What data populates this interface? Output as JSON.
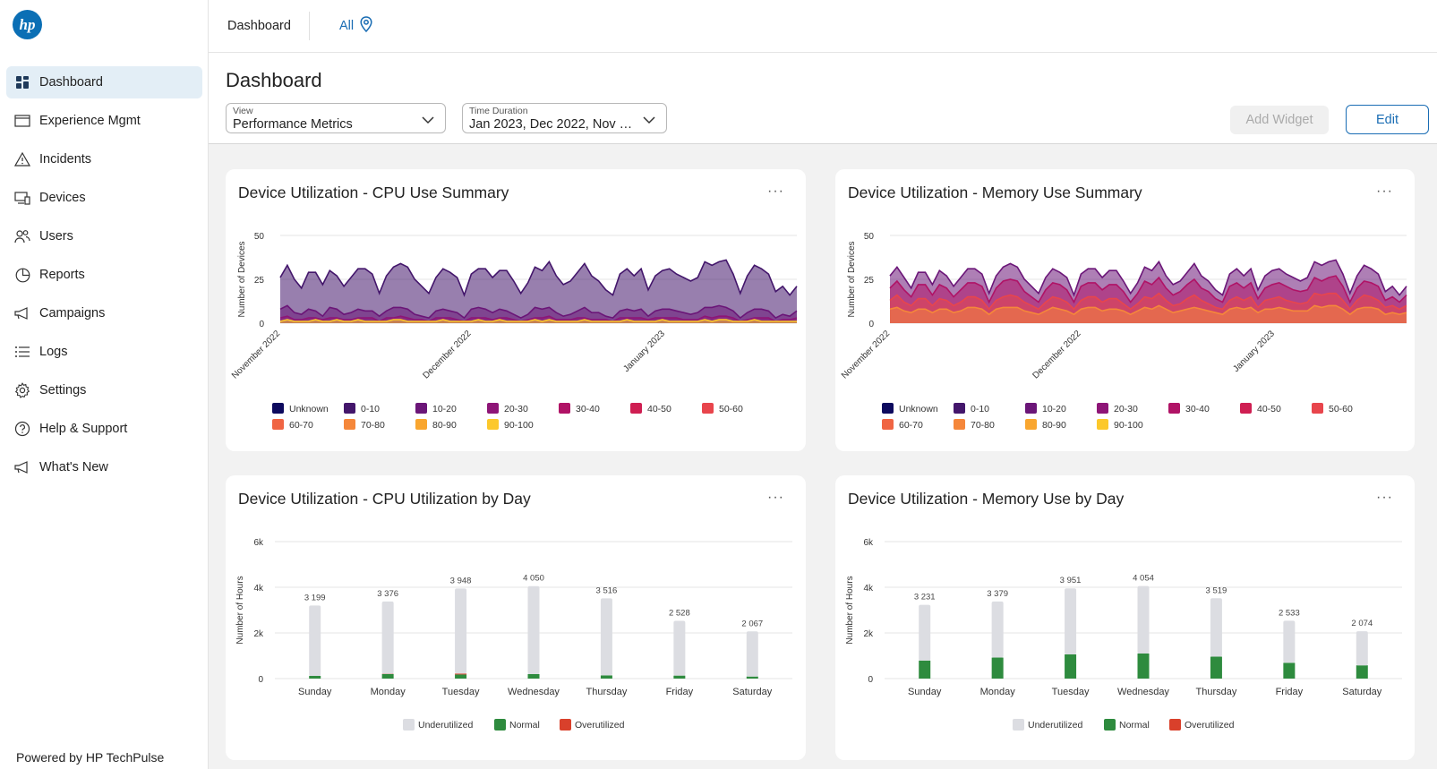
{
  "app": {
    "logo_text": "hp",
    "powered_by": "Powered by HP TechPulse"
  },
  "sidebar": {
    "items": [
      {
        "label": "Dashboard",
        "icon": "dashboard-icon",
        "active": true
      },
      {
        "label": "Experience Mgmt",
        "icon": "window-icon"
      },
      {
        "label": "Incidents",
        "icon": "warning-icon"
      },
      {
        "label": "Devices",
        "icon": "devices-icon"
      },
      {
        "label": "Users",
        "icon": "users-icon"
      },
      {
        "label": "Reports",
        "icon": "pie-chart-icon"
      },
      {
        "label": "Campaigns",
        "icon": "megaphone-icon"
      },
      {
        "label": "Logs",
        "icon": "list-icon"
      },
      {
        "label": "Settings",
        "icon": "gear-icon"
      },
      {
        "label": "Help & Support",
        "icon": "help-icon"
      },
      {
        "label": "What's New",
        "icon": "announcement-icon"
      }
    ]
  },
  "topbar": {
    "breadcrumb": "Dashboard",
    "location": "All"
  },
  "header": {
    "title": "Dashboard",
    "view": {
      "label": "View",
      "value": "Performance Metrics"
    },
    "time": {
      "label": "Time Duration",
      "value": "Jan 2023, Dec 2022, Nov 20..."
    },
    "add_widget": "Add Widget",
    "edit": "Edit"
  },
  "colors": {
    "accent": "#1a6db4",
    "underutilized": "#dcdde2",
    "normal": "#2e8b3e",
    "overutilized": "#d9402b"
  },
  "chart_data": [
    {
      "type": "area",
      "title": "Device Utilization - CPU Use Summary",
      "ylabel": "Number of Devices",
      "ylim": [
        0,
        50
      ],
      "yticks": [
        "50",
        "25",
        "0"
      ],
      "xticks": [
        "November 2022",
        "December 2022",
        "January 2023"
      ],
      "legend": [
        "Unknown",
        "0-10",
        "10-20",
        "20-30",
        "30-40",
        "40-50",
        "50-60",
        "60-70",
        "70-80",
        "80-90",
        "90-100"
      ],
      "legend_colors": [
        "#0d0a5e",
        "#43166b",
        "#6b1678",
        "#8e1577",
        "#b01366",
        "#cf1e52",
        "#e8454c",
        "#f06543",
        "#f5873a",
        "#f9a62f",
        "#fcc82b"
      ],
      "series": [
        {
          "name": "0-10",
          "values": [
            26,
            33,
            25,
            20,
            29,
            29,
            22,
            30,
            27,
            21,
            26,
            31,
            31,
            28,
            17,
            27,
            32,
            34,
            32,
            25,
            21,
            17,
            26,
            31,
            29,
            26,
            16,
            28,
            31,
            31,
            26,
            30,
            30,
            24,
            17,
            23,
            32,
            30,
            35,
            27,
            22,
            24,
            29,
            34,
            27,
            24,
            19,
            16,
            28,
            31,
            27,
            31,
            19,
            27,
            30,
            31,
            28,
            26,
            24,
            26,
            35,
            33,
            35,
            36,
            28,
            17,
            27,
            33,
            31,
            28,
            18,
            21,
            16,
            21
          ]
        },
        {
          "name": "10-20",
          "values": [
            8,
            10,
            6,
            5,
            8,
            7,
            4,
            9,
            8,
            5,
            6,
            8,
            7,
            7,
            4,
            7,
            9,
            9,
            8,
            5,
            4,
            3,
            7,
            8,
            7,
            6,
            3,
            8,
            9,
            8,
            6,
            8,
            7,
            5,
            3,
            5,
            9,
            8,
            9,
            6,
            4,
            5,
            7,
            9,
            6,
            6,
            4,
            3,
            7,
            8,
            7,
            8,
            4,
            7,
            8,
            8,
            7,
            6,
            5,
            6,
            9,
            9,
            10,
            9,
            7,
            3,
            6,
            8,
            8,
            7,
            3,
            5,
            4,
            7
          ]
        },
        {
          "name": "20-30",
          "values": [
            3,
            4,
            2,
            2,
            3,
            3,
            2,
            3,
            3,
            2,
            2,
            3,
            3,
            3,
            1,
            3,
            3,
            4,
            3,
            2,
            2,
            1,
            3,
            3,
            3,
            2,
            1,
            3,
            3,
            3,
            2,
            3,
            3,
            2,
            1,
            2,
            3,
            3,
            4,
            2,
            2,
            2,
            3,
            3,
            2,
            2,
            2,
            1,
            3,
            3,
            3,
            3,
            2,
            3,
            3,
            3,
            3,
            2,
            2,
            2,
            4,
            3,
            4,
            4,
            3,
            1,
            2,
            3,
            3,
            3,
            1,
            2,
            2,
            3
          ]
        },
        {
          "name": "90-100",
          "values": [
            1,
            2,
            1,
            1,
            1,
            2,
            1,
            1,
            2,
            1,
            1,
            2,
            1,
            1,
            1,
            1,
            2,
            2,
            1,
            1,
            1,
            1,
            1,
            2,
            1,
            1,
            1,
            1,
            2,
            1,
            1,
            2,
            1,
            1,
            1,
            1,
            2,
            1,
            2,
            1,
            1,
            1,
            1,
            2,
            1,
            1,
            1,
            1,
            1,
            2,
            1,
            1,
            1,
            1,
            2,
            1,
            1,
            1,
            1,
            1,
            2,
            1,
            2,
            2,
            1,
            1,
            1,
            2,
            1,
            1,
            1,
            1,
            1,
            1
          ]
        }
      ]
    },
    {
      "type": "area",
      "title": "Device Utilization - Memory Use Summary",
      "ylabel": "Number of Devices",
      "ylim": [
        0,
        50
      ],
      "yticks": [
        "50",
        "25",
        "0"
      ],
      "xticks": [
        "November 2022",
        "December 2022",
        "January 2023"
      ],
      "legend": [
        "Unknown",
        "0-10",
        "10-20",
        "20-30",
        "30-40",
        "40-50",
        "50-60",
        "60-70",
        "70-80",
        "80-90",
        "90-100"
      ],
      "legend_colors": [
        "#0d0a5e",
        "#43166b",
        "#6b1678",
        "#8e1577",
        "#b01366",
        "#cf1e52",
        "#e8454c",
        "#f06543",
        "#f5873a",
        "#f9a62f",
        "#fcc82b"
      ],
      "series": [
        {
          "name": "10-20",
          "values": [
            27,
            32,
            26,
            20,
            29,
            29,
            22,
            30,
            27,
            21,
            26,
            31,
            31,
            28,
            17,
            27,
            32,
            34,
            32,
            25,
            21,
            17,
            26,
            31,
            29,
            26,
            16,
            28,
            31,
            31,
            26,
            30,
            30,
            24,
            17,
            23,
            32,
            30,
            35,
            27,
            22,
            24,
            29,
            34,
            27,
            24,
            19,
            16,
            28,
            31,
            27,
            31,
            19,
            27,
            30,
            31,
            28,
            26,
            24,
            26,
            35,
            33,
            35,
            36,
            28,
            17,
            27,
            33,
            31,
            28,
            18,
            21,
            16,
            21
          ]
        },
        {
          "name": "30-40",
          "values": [
            20,
            24,
            19,
            15,
            22,
            22,
            16,
            22,
            20,
            15,
            19,
            23,
            23,
            21,
            12,
            20,
            24,
            25,
            24,
            18,
            15,
            12,
            19,
            23,
            22,
            19,
            12,
            21,
            23,
            23,
            19,
            22,
            22,
            18,
            12,
            17,
            24,
            22,
            26,
            20,
            16,
            18,
            22,
            25,
            20,
            18,
            14,
            12,
            21,
            23,
            20,
            23,
            14,
            20,
            22,
            23,
            21,
            19,
            18,
            19,
            26,
            24,
            26,
            27,
            21,
            12,
            20,
            24,
            23,
            21,
            13,
            15,
            12,
            16
          ]
        },
        {
          "name": "50-60",
          "values": [
            13,
            16,
            12,
            10,
            14,
            14,
            10,
            14,
            13,
            10,
            12,
            15,
            15,
            13,
            8,
            13,
            15,
            16,
            15,
            12,
            10,
            8,
            12,
            15,
            14,
            12,
            8,
            13,
            15,
            15,
            12,
            14,
            14,
            11,
            8,
            11,
            15,
            14,
            17,
            13,
            10,
            11,
            14,
            16,
            13,
            11,
            9,
            8,
            13,
            15,
            13,
            15,
            9,
            13,
            14,
            15,
            13,
            12,
            11,
            12,
            17,
            16,
            17,
            17,
            13,
            8,
            13,
            16,
            15,
            13,
            9,
            10,
            8,
            10
          ]
        },
        {
          "name": "70-80",
          "values": [
            8,
            9,
            7,
            6,
            8,
            8,
            6,
            8,
            8,
            6,
            7,
            9,
            9,
            8,
            5,
            8,
            9,
            9,
            9,
            7,
            6,
            5,
            7,
            9,
            8,
            7,
            5,
            8,
            9,
            9,
            7,
            8,
            8,
            7,
            5,
            7,
            9,
            8,
            10,
            8,
            6,
            7,
            8,
            9,
            8,
            7,
            6,
            5,
            8,
            9,
            8,
            9,
            6,
            8,
            8,
            9,
            8,
            7,
            7,
            7,
            10,
            9,
            10,
            10,
            8,
            5,
            8,
            9,
            9,
            8,
            5,
            6,
            5,
            6
          ]
        }
      ]
    },
    {
      "type": "bar",
      "title": "Device Utilization - CPU Utilization by Day",
      "ylabel": "Number of Hours",
      "ylim": [
        0,
        6000
      ],
      "yticks": [
        "6k",
        "4k",
        "2k",
        "0"
      ],
      "categories": [
        "Sunday",
        "Monday",
        "Tuesday",
        "Wednesday",
        "Thursday",
        "Friday",
        "Saturday"
      ],
      "totals": [
        3199,
        3376,
        3948,
        4050,
        3516,
        2528,
        2067
      ],
      "total_labels": [
        "3 199",
        "3 376",
        "3 948",
        "4 050",
        "3 516",
        "2 528",
        "2 067"
      ],
      "series": [
        {
          "name": "Underutilized",
          "values": [
            3079,
            3166,
            3728,
            3850,
            3376,
            2398,
            1977
          ]
        },
        {
          "name": "Normal",
          "values": [
            120,
            200,
            180,
            200,
            140,
            130,
            90
          ]
        },
        {
          "name": "Overutilized",
          "values": [
            0,
            10,
            40,
            0,
            0,
            0,
            0
          ]
        }
      ]
    },
    {
      "type": "bar",
      "title": "Device Utilization - Memory Use by Day",
      "ylabel": "Number of Hours",
      "ylim": [
        0,
        6000
      ],
      "yticks": [
        "6k",
        "4k",
        "2k",
        "0"
      ],
      "categories": [
        "Sunday",
        "Monday",
        "Tuesday",
        "Wednesday",
        "Thursday",
        "Friday",
        "Saturday"
      ],
      "totals": [
        3231,
        3379,
        3951,
        4054,
        3519,
        2533,
        2074
      ],
      "total_labels": [
        "3 231",
        "3 379",
        "3 951",
        "4 054",
        "3 519",
        "2 533",
        "2 074"
      ],
      "series": [
        {
          "name": "Underutilized",
          "values": [
            2441,
            2459,
            2891,
            2954,
            2559,
            1843,
            1494
          ]
        },
        {
          "name": "Normal",
          "values": [
            790,
            920,
            1060,
            1100,
            960,
            690,
            580
          ]
        },
        {
          "name": "Overutilized",
          "values": [
            0,
            0,
            0,
            0,
            0,
            0,
            0
          ]
        }
      ]
    }
  ]
}
